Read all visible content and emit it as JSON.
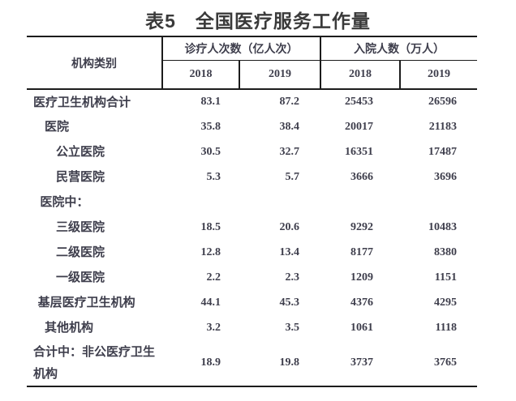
{
  "title": "表5　全国医疗服务工作量",
  "table": {
    "category_header": "机构类别",
    "group_headers": [
      "诊疗人次数（亿人次）",
      "入院人数（万人）"
    ],
    "year_headers": [
      "2018",
      "2019",
      "2018",
      "2019"
    ],
    "rows": [
      {
        "label": "医疗卫生机构合计",
        "indent": 0,
        "values": [
          "83.1",
          "87.2",
          "25453",
          "26596"
        ]
      },
      {
        "label": "医院",
        "indent": 1,
        "values": [
          "35.8",
          "38.4",
          "20017",
          "21183"
        ]
      },
      {
        "label": "公立医院",
        "indent": 2,
        "values": [
          "30.5",
          "32.7",
          "16351",
          "17487"
        ]
      },
      {
        "label": "民营医院",
        "indent": 2,
        "values": [
          "5.3",
          "5.7",
          "3666",
          "3696"
        ]
      },
      {
        "label": "医院中：",
        "indent": 0.6,
        "values": [
          "",
          "",
          "",
          ""
        ]
      },
      {
        "label": "三级医院",
        "indent": 2,
        "values": [
          "18.5",
          "20.6",
          "9292",
          "10483"
        ]
      },
      {
        "label": "二级医院",
        "indent": 2,
        "values": [
          "12.8",
          "13.4",
          "8177",
          "8380"
        ]
      },
      {
        "label": "一级医院",
        "indent": 2,
        "values": [
          "2.2",
          "2.3",
          "1209",
          "1151"
        ]
      },
      {
        "label": "基层医疗卫生机构",
        "indent": 0.4,
        "values": [
          "44.1",
          "45.3",
          "4376",
          "4295"
        ]
      },
      {
        "label": "其他机构",
        "indent": 1,
        "values": [
          "3.2",
          "3.5",
          "1061",
          "1118"
        ]
      },
      {
        "label": "合计中：非公医疗卫生机构",
        "indent": 0,
        "values": [
          "18.9",
          "19.8",
          "3737",
          "3765"
        ]
      }
    ]
  },
  "colors": {
    "background": "#ffffff",
    "text": "#3e3e4c",
    "title_text": "#3a3a3a",
    "border": "#1c1c1c"
  }
}
